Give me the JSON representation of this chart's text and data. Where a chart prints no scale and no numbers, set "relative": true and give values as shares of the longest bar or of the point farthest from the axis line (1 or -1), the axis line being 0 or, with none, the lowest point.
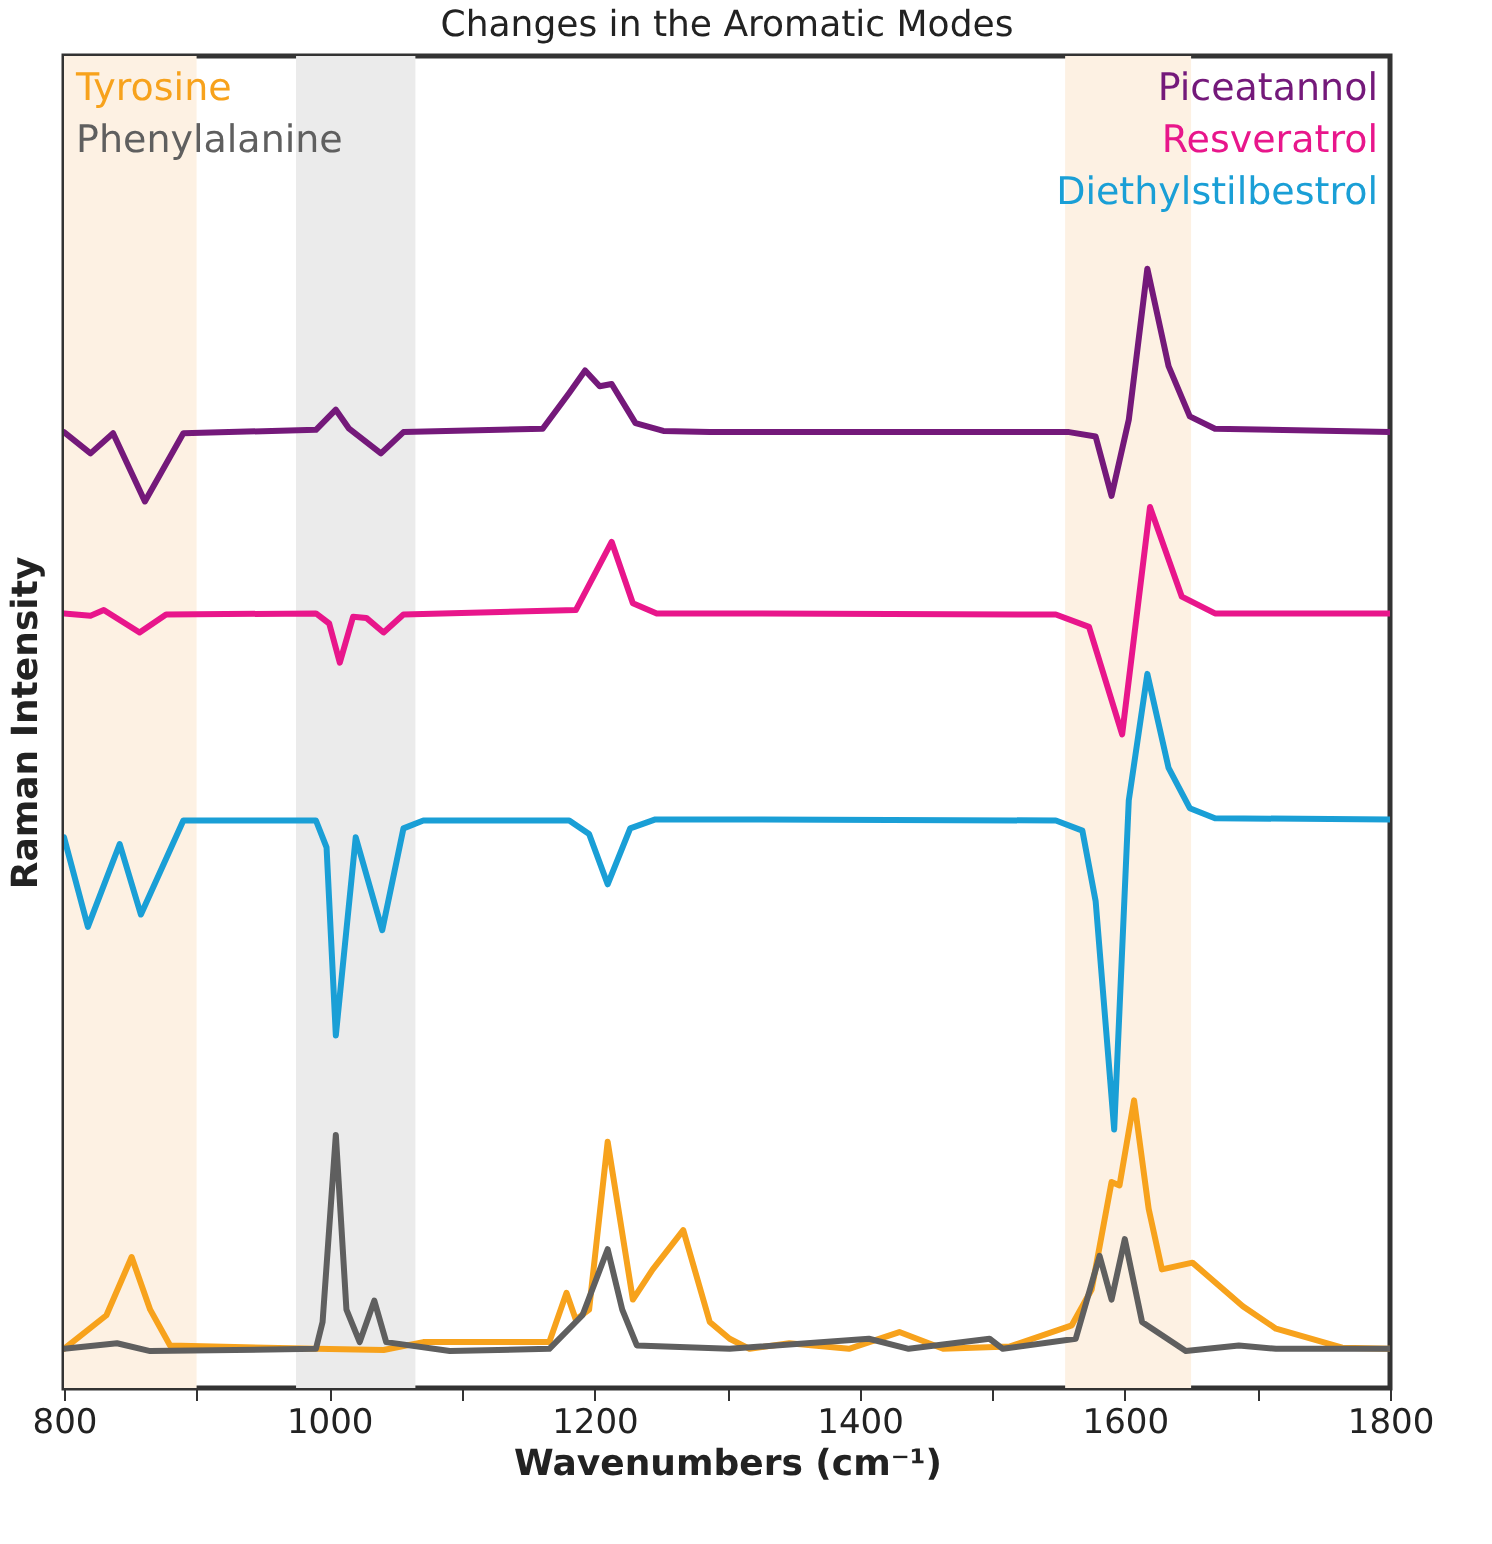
{
  "chart_data": {
    "type": "line",
    "title": "Changes in the Aromatic Modes",
    "xlabel": "Wavenumbers (cm⁻¹)",
    "ylabel": "Raman Intensity",
    "relative": true,
    "legend": "top",
    "grid": false,
    "marker": "none",
    "line_style": "solid",
    "xlim": [
      800,
      1800
    ],
    "xticks": [
      800,
      {
        "value": 900,
        "label": null
      },
      1000,
      {
        "value": 1100,
        "label": null
      },
      1200,
      {
        "value": 1300,
        "label": null
      },
      1400,
      {
        "value": 1500,
        "label": null
      },
      1600,
      {
        "value": 1700,
        "label": null
      },
      1800
    ],
    "bands": [
      {
        "axis": "x",
        "from": 800,
        "to": 900,
        "color": "#fdf1e3"
      },
      {
        "axis": "x",
        "from": 975,
        "to": 1065,
        "color": "#ebebeb"
      },
      {
        "axis": "x",
        "from": 1555,
        "to": 1650,
        "color": "#fdf1e3"
      }
    ],
    "series": [
      {
        "name": "Tyrosine",
        "color": "#f7a21c",
        "x": [
          800,
          832,
          851,
          865,
          880,
          990,
          1041,
          1071,
          1166,
          1179,
          1186,
          1196,
          1210,
          1229,
          1244,
          1267,
          1287,
          1302,
          1317,
          1347,
          1392,
          1430,
          1463,
          1513,
          1560,
          1575,
          1590,
          1596,
          1607,
          1618,
          1628,
          1651,
          1689,
          1714,
          1764,
          1800
        ],
        "values": [
          0.035,
          0.065,
          0.117,
          0.07,
          0.038,
          0.035,
          0.034,
          0.041,
          0.041,
          0.085,
          0.061,
          0.07,
          0.22,
          0.079,
          0.106,
          0.141,
          0.059,
          0.044,
          0.035,
          0.04,
          0.035,
          0.05,
          0.035,
          0.037,
          0.056,
          0.088,
          0.184,
          0.181,
          0.257,
          0.16,
          0.106,
          0.112,
          0.073,
          0.053,
          0.036,
          0.035
        ]
      },
      {
        "name": "Phenylalanine",
        "color": "#5f5f5f",
        "x": [
          800,
          840,
          865,
          990,
          995,
          1005,
          1013,
          1023,
          1034,
          1043,
          1091,
          1166,
          1191,
          1210,
          1221,
          1232,
          1302,
          1407,
          1437,
          1498,
          1508,
          1563,
          1581,
          1590,
          1600,
          1613,
          1646,
          1686,
          1714,
          1800
        ],
        "values": [
          0.035,
          0.04,
          0.033,
          0.035,
          0.059,
          0.226,
          0.07,
          0.041,
          0.078,
          0.041,
          0.033,
          0.035,
          0.065,
          0.124,
          0.07,
          0.038,
          0.035,
          0.044,
          0.035,
          0.044,
          0.035,
          0.044,
          0.118,
          0.079,
          0.133,
          0.059,
          0.033,
          0.038,
          0.035,
          0.035
        ]
      },
      {
        "name": "Piceatannol",
        "color": "#74197a",
        "x": [
          800,
          820,
          837,
          861,
          890,
          990,
          1005,
          1015,
          1039,
          1056,
          1161,
          1181,
          1193,
          1204,
          1213,
          1231,
          1252,
          1287,
          1558,
          1578,
          1590,
          1603,
          1617,
          1633,
          1649,
          1668,
          1800
        ],
        "values": [
          0.854,
          0.835,
          0.853,
          0.792,
          0.853,
          0.856,
          0.874,
          0.857,
          0.835,
          0.854,
          0.857,
          0.889,
          0.909,
          0.895,
          0.897,
          0.862,
          0.855,
          0.854,
          0.854,
          0.85,
          0.797,
          0.865,
          1,
          0.913,
          0.868,
          0.857,
          0.854
        ]
      },
      {
        "name": "Resveratrol",
        "color": "#e8168b",
        "x": [
          800,
          820,
          830,
          857,
          877,
          990,
          1000,
          1008,
          1018,
          1028,
          1041,
          1056,
          1186,
          1213,
          1229,
          1247,
          1287,
          1548,
          1573,
          1598,
          1619,
          1643,
          1668,
          1800
        ],
        "values": [
          0.692,
          0.69,
          0.695,
          0.675,
          0.691,
          0.692,
          0.683,
          0.648,
          0.689,
          0.688,
          0.675,
          0.691,
          0.695,
          0.756,
          0.701,
          0.692,
          0.692,
          0.691,
          0.68,
          0.584,
          0.787,
          0.707,
          0.692,
          0.692
        ]
      },
      {
        "name": "Diethylstilbestrol",
        "color": "#1a9fd6",
        "x": [
          800,
          818,
          842,
          858,
          890,
          990,
          998,
          1005,
          1020,
          1040,
          1056,
          1071,
          1181,
          1196,
          1210,
          1227,
          1246,
          1287,
          1548,
          1568,
          1578,
          1592,
          1603,
          1617,
          1633,
          1649,
          1668,
          1800
        ],
        "values": [
          0.492,
          0.412,
          0.486,
          0.423,
          0.507,
          0.507,
          0.483,
          0.315,
          0.492,
          0.409,
          0.5,
          0.507,
          0.507,
          0.495,
          0.45,
          0.5,
          0.508,
          0.508,
          0.507,
          0.498,
          0.435,
          0.231,
          0.525,
          0.638,
          0.554,
          0.518,
          0.509,
          0.508
        ]
      }
    ]
  }
}
